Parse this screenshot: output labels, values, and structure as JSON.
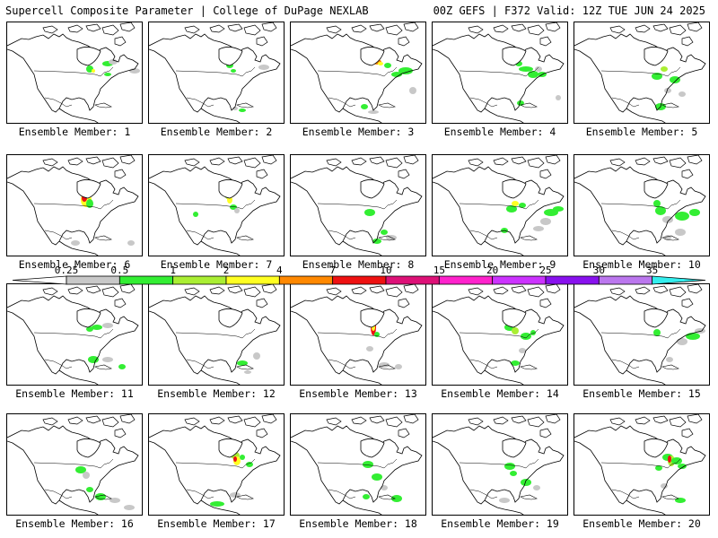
{
  "header": {
    "title": "Supercell Composite Parameter | College of DuPage NEXLAB",
    "run_info": "00Z GEFS | F372 Valid: 12Z TUE JUN 24 2025"
  },
  "members": [
    {
      "label": "Ensemble Member: 1"
    },
    {
      "label": "Ensemble Member: 2"
    },
    {
      "label": "Ensemble Member: 3"
    },
    {
      "label": "Ensemble Member: 4"
    },
    {
      "label": "Ensemble Member: 5"
    },
    {
      "label": "Ensemble Member: 6"
    },
    {
      "label": "Ensemble Member: 7"
    },
    {
      "label": "Ensemble Member: 8"
    },
    {
      "label": "Ensemble Member: 9"
    },
    {
      "label": "Ensemble Member: 10"
    },
    {
      "label": "Ensemble Member: 11"
    },
    {
      "label": "Ensemble Member: 12"
    },
    {
      "label": "Ensemble Member: 13"
    },
    {
      "label": "Ensemble Member: 14"
    },
    {
      "label": "Ensemble Member: 15"
    },
    {
      "label": "Ensemble Member: 16"
    },
    {
      "label": "Ensemble Member: 17"
    },
    {
      "label": "Ensemble Member: 18"
    },
    {
      "label": "Ensemble Member: 19"
    },
    {
      "label": "Ensemble Member: 20"
    }
  ],
  "colorbar": {
    "ticks": [
      "0.25",
      "0.5",
      "1",
      "2",
      "4",
      "7",
      "10",
      "15",
      "20",
      "25",
      "30",
      "35"
    ],
    "colors": [
      "#ffffff",
      "#c8c8c8",
      "#33ee33",
      "#aaee33",
      "#ffff22",
      "#ff8800",
      "#ee1111",
      "#dd1177",
      "#ff22cc",
      "#cc33ff",
      "#8811ee",
      "#bb77ee",
      "#33eeee"
    ]
  }
}
